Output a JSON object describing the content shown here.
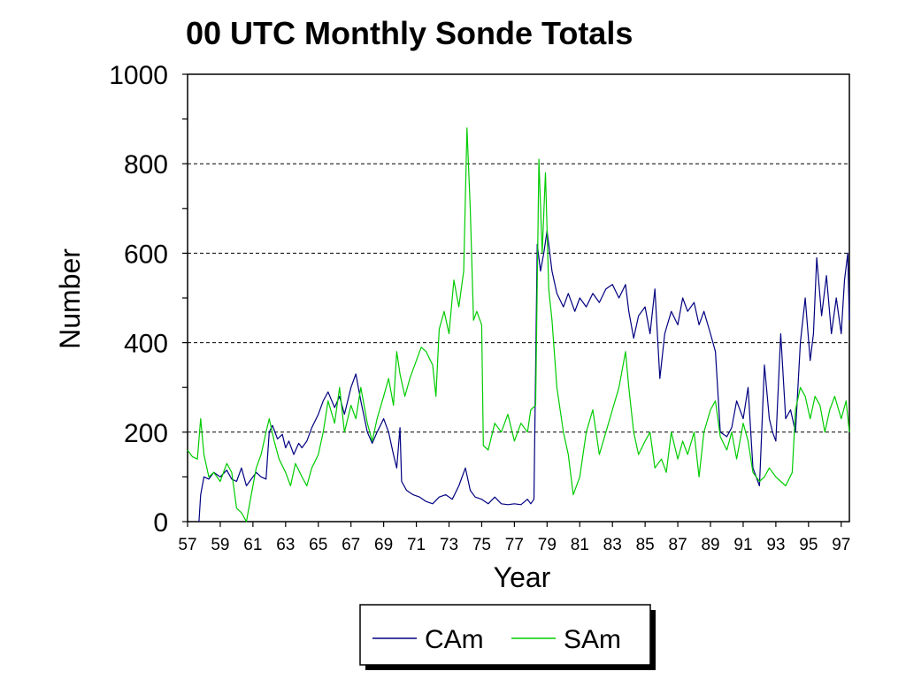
{
  "chart_data": {
    "type": "line",
    "title": "00 UTC Monthly Sonde Totals",
    "xlabel": "Year",
    "ylabel": "Number",
    "xlim": [
      57,
      97.5
    ],
    "ylim": [
      0,
      1000
    ],
    "yticks": [
      "0",
      "200",
      "400",
      "600",
      "800",
      "1000"
    ],
    "xticks": [
      "57",
      "59",
      "61",
      "63",
      "65",
      "67",
      "69",
      "71",
      "73",
      "75",
      "77",
      "79",
      "81",
      "83",
      "85",
      "87",
      "89",
      "91",
      "93",
      "95",
      "97"
    ],
    "grid": "horizontal dashed",
    "legend": "bottom-center",
    "series": [
      {
        "name": "CAm",
        "color": "#000080",
        "points": [
          [
            57.7,
            0
          ],
          [
            57.8,
            60
          ],
          [
            58.0,
            100
          ],
          [
            58.3,
            95
          ],
          [
            58.6,
            110
          ],
          [
            59.0,
            100
          ],
          [
            59.4,
            115
          ],
          [
            59.7,
            95
          ],
          [
            60.0,
            90
          ],
          [
            60.3,
            120
          ],
          [
            60.6,
            80
          ],
          [
            60.9,
            95
          ],
          [
            61.0,
            100
          ],
          [
            61.2,
            110
          ],
          [
            61.5,
            100
          ],
          [
            61.8,
            95
          ],
          [
            62.0,
            200
          ],
          [
            62.2,
            215
          ],
          [
            62.5,
            185
          ],
          [
            62.8,
            195
          ],
          [
            63.0,
            165
          ],
          [
            63.2,
            180
          ],
          [
            63.5,
            150
          ],
          [
            63.8,
            175
          ],
          [
            64.0,
            165
          ],
          [
            64.3,
            180
          ],
          [
            64.6,
            210
          ],
          [
            65.0,
            240
          ],
          [
            65.3,
            270
          ],
          [
            65.6,
            290
          ],
          [
            66.0,
            255
          ],
          [
            66.3,
            280
          ],
          [
            66.6,
            240
          ],
          [
            67.0,
            300
          ],
          [
            67.3,
            330
          ],
          [
            67.6,
            270
          ],
          [
            68.0,
            200
          ],
          [
            68.3,
            175
          ],
          [
            68.6,
            200
          ],
          [
            69.0,
            230
          ],
          [
            69.3,
            200
          ],
          [
            69.6,
            150
          ],
          [
            69.8,
            120
          ],
          [
            70.0,
            210
          ],
          [
            70.1,
            90
          ],
          [
            70.4,
            70
          ],
          [
            70.8,
            60
          ],
          [
            71.2,
            55
          ],
          [
            71.6,
            45
          ],
          [
            72.0,
            40
          ],
          [
            72.4,
            55
          ],
          [
            72.8,
            60
          ],
          [
            73.2,
            50
          ],
          [
            73.6,
            80
          ],
          [
            74.0,
            120
          ],
          [
            74.3,
            70
          ],
          [
            74.6,
            55
          ],
          [
            75.0,
            50
          ],
          [
            75.4,
            40
          ],
          [
            75.8,
            55
          ],
          [
            76.2,
            40
          ],
          [
            76.6,
            38
          ],
          [
            77.0,
            40
          ],
          [
            77.4,
            38
          ],
          [
            77.8,
            50
          ],
          [
            78.0,
            40
          ],
          [
            78.2,
            50
          ],
          [
            78.4,
            620
          ],
          [
            78.6,
            560
          ],
          [
            78.8,
            600
          ],
          [
            79.0,
            650
          ],
          [
            79.3,
            560
          ],
          [
            79.6,
            510
          ],
          [
            80.0,
            480
          ],
          [
            80.3,
            510
          ],
          [
            80.7,
            470
          ],
          [
            81.0,
            500
          ],
          [
            81.4,
            480
          ],
          [
            81.8,
            510
          ],
          [
            82.2,
            490
          ],
          [
            82.6,
            520
          ],
          [
            83.0,
            530
          ],
          [
            83.4,
            500
          ],
          [
            83.8,
            530
          ],
          [
            84.0,
            470
          ],
          [
            84.3,
            410
          ],
          [
            84.6,
            460
          ],
          [
            85.0,
            480
          ],
          [
            85.3,
            420
          ],
          [
            85.6,
            520
          ],
          [
            85.9,
            320
          ],
          [
            86.2,
            420
          ],
          [
            86.6,
            470
          ],
          [
            87.0,
            440
          ],
          [
            87.3,
            500
          ],
          [
            87.6,
            470
          ],
          [
            88.0,
            490
          ],
          [
            88.3,
            440
          ],
          [
            88.6,
            470
          ],
          [
            89.0,
            420
          ],
          [
            89.3,
            380
          ],
          [
            89.6,
            200
          ],
          [
            90.0,
            190
          ],
          [
            90.3,
            210
          ],
          [
            90.6,
            270
          ],
          [
            91.0,
            230
          ],
          [
            91.3,
            300
          ],
          [
            91.6,
            120
          ],
          [
            91.8,
            100
          ],
          [
            92.0,
            80
          ],
          [
            92.3,
            350
          ],
          [
            92.6,
            230
          ],
          [
            92.8,
            200
          ],
          [
            93.0,
            180
          ],
          [
            93.3,
            420
          ],
          [
            93.6,
            230
          ],
          [
            93.9,
            250
          ],
          [
            94.2,
            200
          ],
          [
            94.5,
            400
          ],
          [
            94.8,
            500
          ],
          [
            95.1,
            360
          ],
          [
            95.3,
            420
          ],
          [
            95.5,
            590
          ],
          [
            95.8,
            460
          ],
          [
            96.1,
            550
          ],
          [
            96.4,
            420
          ],
          [
            96.7,
            500
          ],
          [
            97.0,
            420
          ],
          [
            97.2,
            540
          ],
          [
            97.4,
            600
          ],
          [
            97.5,
            450
          ]
        ]
      },
      {
        "name": "SAm",
        "color": "#00cc00",
        "points": [
          [
            57.0,
            160
          ],
          [
            57.3,
            145
          ],
          [
            57.6,
            140
          ],
          [
            57.8,
            230
          ],
          [
            58.0,
            150
          ],
          [
            58.3,
            100
          ],
          [
            58.6,
            110
          ],
          [
            59.0,
            90
          ],
          [
            59.4,
            130
          ],
          [
            59.7,
            110
          ],
          [
            60.0,
            30
          ],
          [
            60.3,
            20
          ],
          [
            60.6,
            0
          ],
          [
            60.9,
            60
          ],
          [
            61.2,
            120
          ],
          [
            61.5,
            150
          ],
          [
            61.8,
            200
          ],
          [
            62.0,
            230
          ],
          [
            62.3,
            180
          ],
          [
            62.6,
            140
          ],
          [
            63.0,
            110
          ],
          [
            63.3,
            80
          ],
          [
            63.6,
            130
          ],
          [
            64.0,
            100
          ],
          [
            64.3,
            80
          ],
          [
            64.6,
            120
          ],
          [
            65.0,
            150
          ],
          [
            65.3,
            200
          ],
          [
            65.6,
            270
          ],
          [
            66.0,
            220
          ],
          [
            66.3,
            300
          ],
          [
            66.6,
            200
          ],
          [
            67.0,
            260
          ],
          [
            67.3,
            230
          ],
          [
            67.6,
            300
          ],
          [
            68.0,
            220
          ],
          [
            68.3,
            180
          ],
          [
            68.6,
            230
          ],
          [
            69.0,
            280
          ],
          [
            69.3,
            320
          ],
          [
            69.6,
            260
          ],
          [
            69.8,
            380
          ],
          [
            70.0,
            330
          ],
          [
            70.3,
            280
          ],
          [
            70.6,
            320
          ],
          [
            71.0,
            360
          ],
          [
            71.3,
            390
          ],
          [
            71.6,
            380
          ],
          [
            72.0,
            350
          ],
          [
            72.2,
            280
          ],
          [
            72.4,
            430
          ],
          [
            72.7,
            470
          ],
          [
            73.0,
            420
          ],
          [
            73.3,
            540
          ],
          [
            73.6,
            480
          ],
          [
            73.9,
            560
          ],
          [
            74.1,
            880
          ],
          [
            74.3,
            700
          ],
          [
            74.5,
            450
          ],
          [
            74.7,
            470
          ],
          [
            75.0,
            440
          ],
          [
            75.1,
            170
          ],
          [
            75.4,
            160
          ],
          [
            75.8,
            220
          ],
          [
            76.2,
            200
          ],
          [
            76.6,
            240
          ],
          [
            77.0,
            180
          ],
          [
            77.4,
            220
          ],
          [
            77.8,
            200
          ],
          [
            78.0,
            250
          ],
          [
            78.3,
            260
          ],
          [
            78.5,
            810
          ],
          [
            78.7,
            600
          ],
          [
            78.9,
            780
          ],
          [
            79.1,
            520
          ],
          [
            79.3,
            450
          ],
          [
            79.6,
            300
          ],
          [
            80.0,
            200
          ],
          [
            80.3,
            150
          ],
          [
            80.6,
            60
          ],
          [
            81.0,
            100
          ],
          [
            81.4,
            200
          ],
          [
            81.8,
            250
          ],
          [
            82.2,
            150
          ],
          [
            82.6,
            200
          ],
          [
            83.0,
            250
          ],
          [
            83.4,
            300
          ],
          [
            83.8,
            380
          ],
          [
            84.0,
            300
          ],
          [
            84.3,
            200
          ],
          [
            84.6,
            150
          ],
          [
            85.0,
            180
          ],
          [
            85.3,
            200
          ],
          [
            85.6,
            120
          ],
          [
            86.0,
            140
          ],
          [
            86.3,
            110
          ],
          [
            86.6,
            200
          ],
          [
            87.0,
            140
          ],
          [
            87.3,
            180
          ],
          [
            87.6,
            150
          ],
          [
            88.0,
            200
          ],
          [
            88.3,
            100
          ],
          [
            88.6,
            200
          ],
          [
            89.0,
            250
          ],
          [
            89.3,
            270
          ],
          [
            89.6,
            190
          ],
          [
            90.0,
            160
          ],
          [
            90.3,
            200
          ],
          [
            90.6,
            140
          ],
          [
            91.0,
            220
          ],
          [
            91.3,
            180
          ],
          [
            91.6,
            110
          ],
          [
            92.0,
            90
          ],
          [
            92.3,
            100
          ],
          [
            92.6,
            120
          ],
          [
            93.0,
            100
          ],
          [
            93.3,
            90
          ],
          [
            93.6,
            80
          ],
          [
            94.0,
            110
          ],
          [
            94.2,
            250
          ],
          [
            94.5,
            300
          ],
          [
            94.8,
            280
          ],
          [
            95.1,
            230
          ],
          [
            95.4,
            280
          ],
          [
            95.7,
            260
          ],
          [
            96.0,
            200
          ],
          [
            96.3,
            250
          ],
          [
            96.6,
            280
          ],
          [
            97.0,
            230
          ],
          [
            97.3,
            270
          ],
          [
            97.5,
            200
          ]
        ]
      }
    ]
  }
}
